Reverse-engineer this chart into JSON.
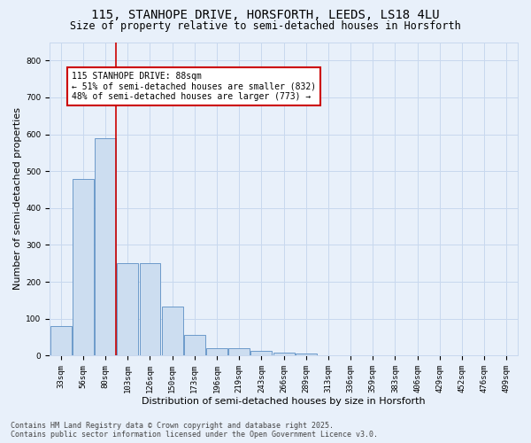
{
  "title1": "115, STANHOPE DRIVE, HORSFORTH, LEEDS, LS18 4LU",
  "title2": "Size of property relative to semi-detached houses in Horsforth",
  "xlabel": "Distribution of semi-detached houses by size in Horsforth",
  "ylabel": "Number of semi-detached properties",
  "categories": [
    "33sqm",
    "56sqm",
    "80sqm",
    "103sqm",
    "126sqm",
    "150sqm",
    "173sqm",
    "196sqm",
    "219sqm",
    "243sqm",
    "266sqm",
    "289sqm",
    "313sqm",
    "336sqm",
    "359sqm",
    "383sqm",
    "406sqm",
    "429sqm",
    "452sqm",
    "476sqm",
    "499sqm"
  ],
  "values": [
    80,
    480,
    590,
    250,
    250,
    133,
    55,
    20,
    20,
    13,
    8,
    5,
    0,
    0,
    0,
    0,
    0,
    0,
    0,
    0,
    0
  ],
  "bar_color": "#ccddf0",
  "bar_edge_color": "#5b8ec4",
  "grid_color": "#c8d8ee",
  "background_color": "#e8f0fa",
  "red_line_color": "#cc0000",
  "annotation_title": "115 STANHOPE DRIVE: 88sqm",
  "annotation_line1": "← 51% of semi-detached houses are smaller (832)",
  "annotation_line2": "48% of semi-detached houses are larger (773) →",
  "annotation_box_color": "#ffffff",
  "annotation_edge_color": "#cc0000",
  "ylim": [
    0,
    850
  ],
  "yticks": [
    0,
    100,
    200,
    300,
    400,
    500,
    600,
    700,
    800
  ],
  "footer1": "Contains HM Land Registry data © Crown copyright and database right 2025.",
  "footer2": "Contains public sector information licensed under the Open Government Licence v3.0.",
  "title1_fontsize": 10,
  "title2_fontsize": 8.5,
  "axis_label_fontsize": 8,
  "tick_fontsize": 6.5,
  "annotation_fontsize": 7,
  "footer_fontsize": 6
}
